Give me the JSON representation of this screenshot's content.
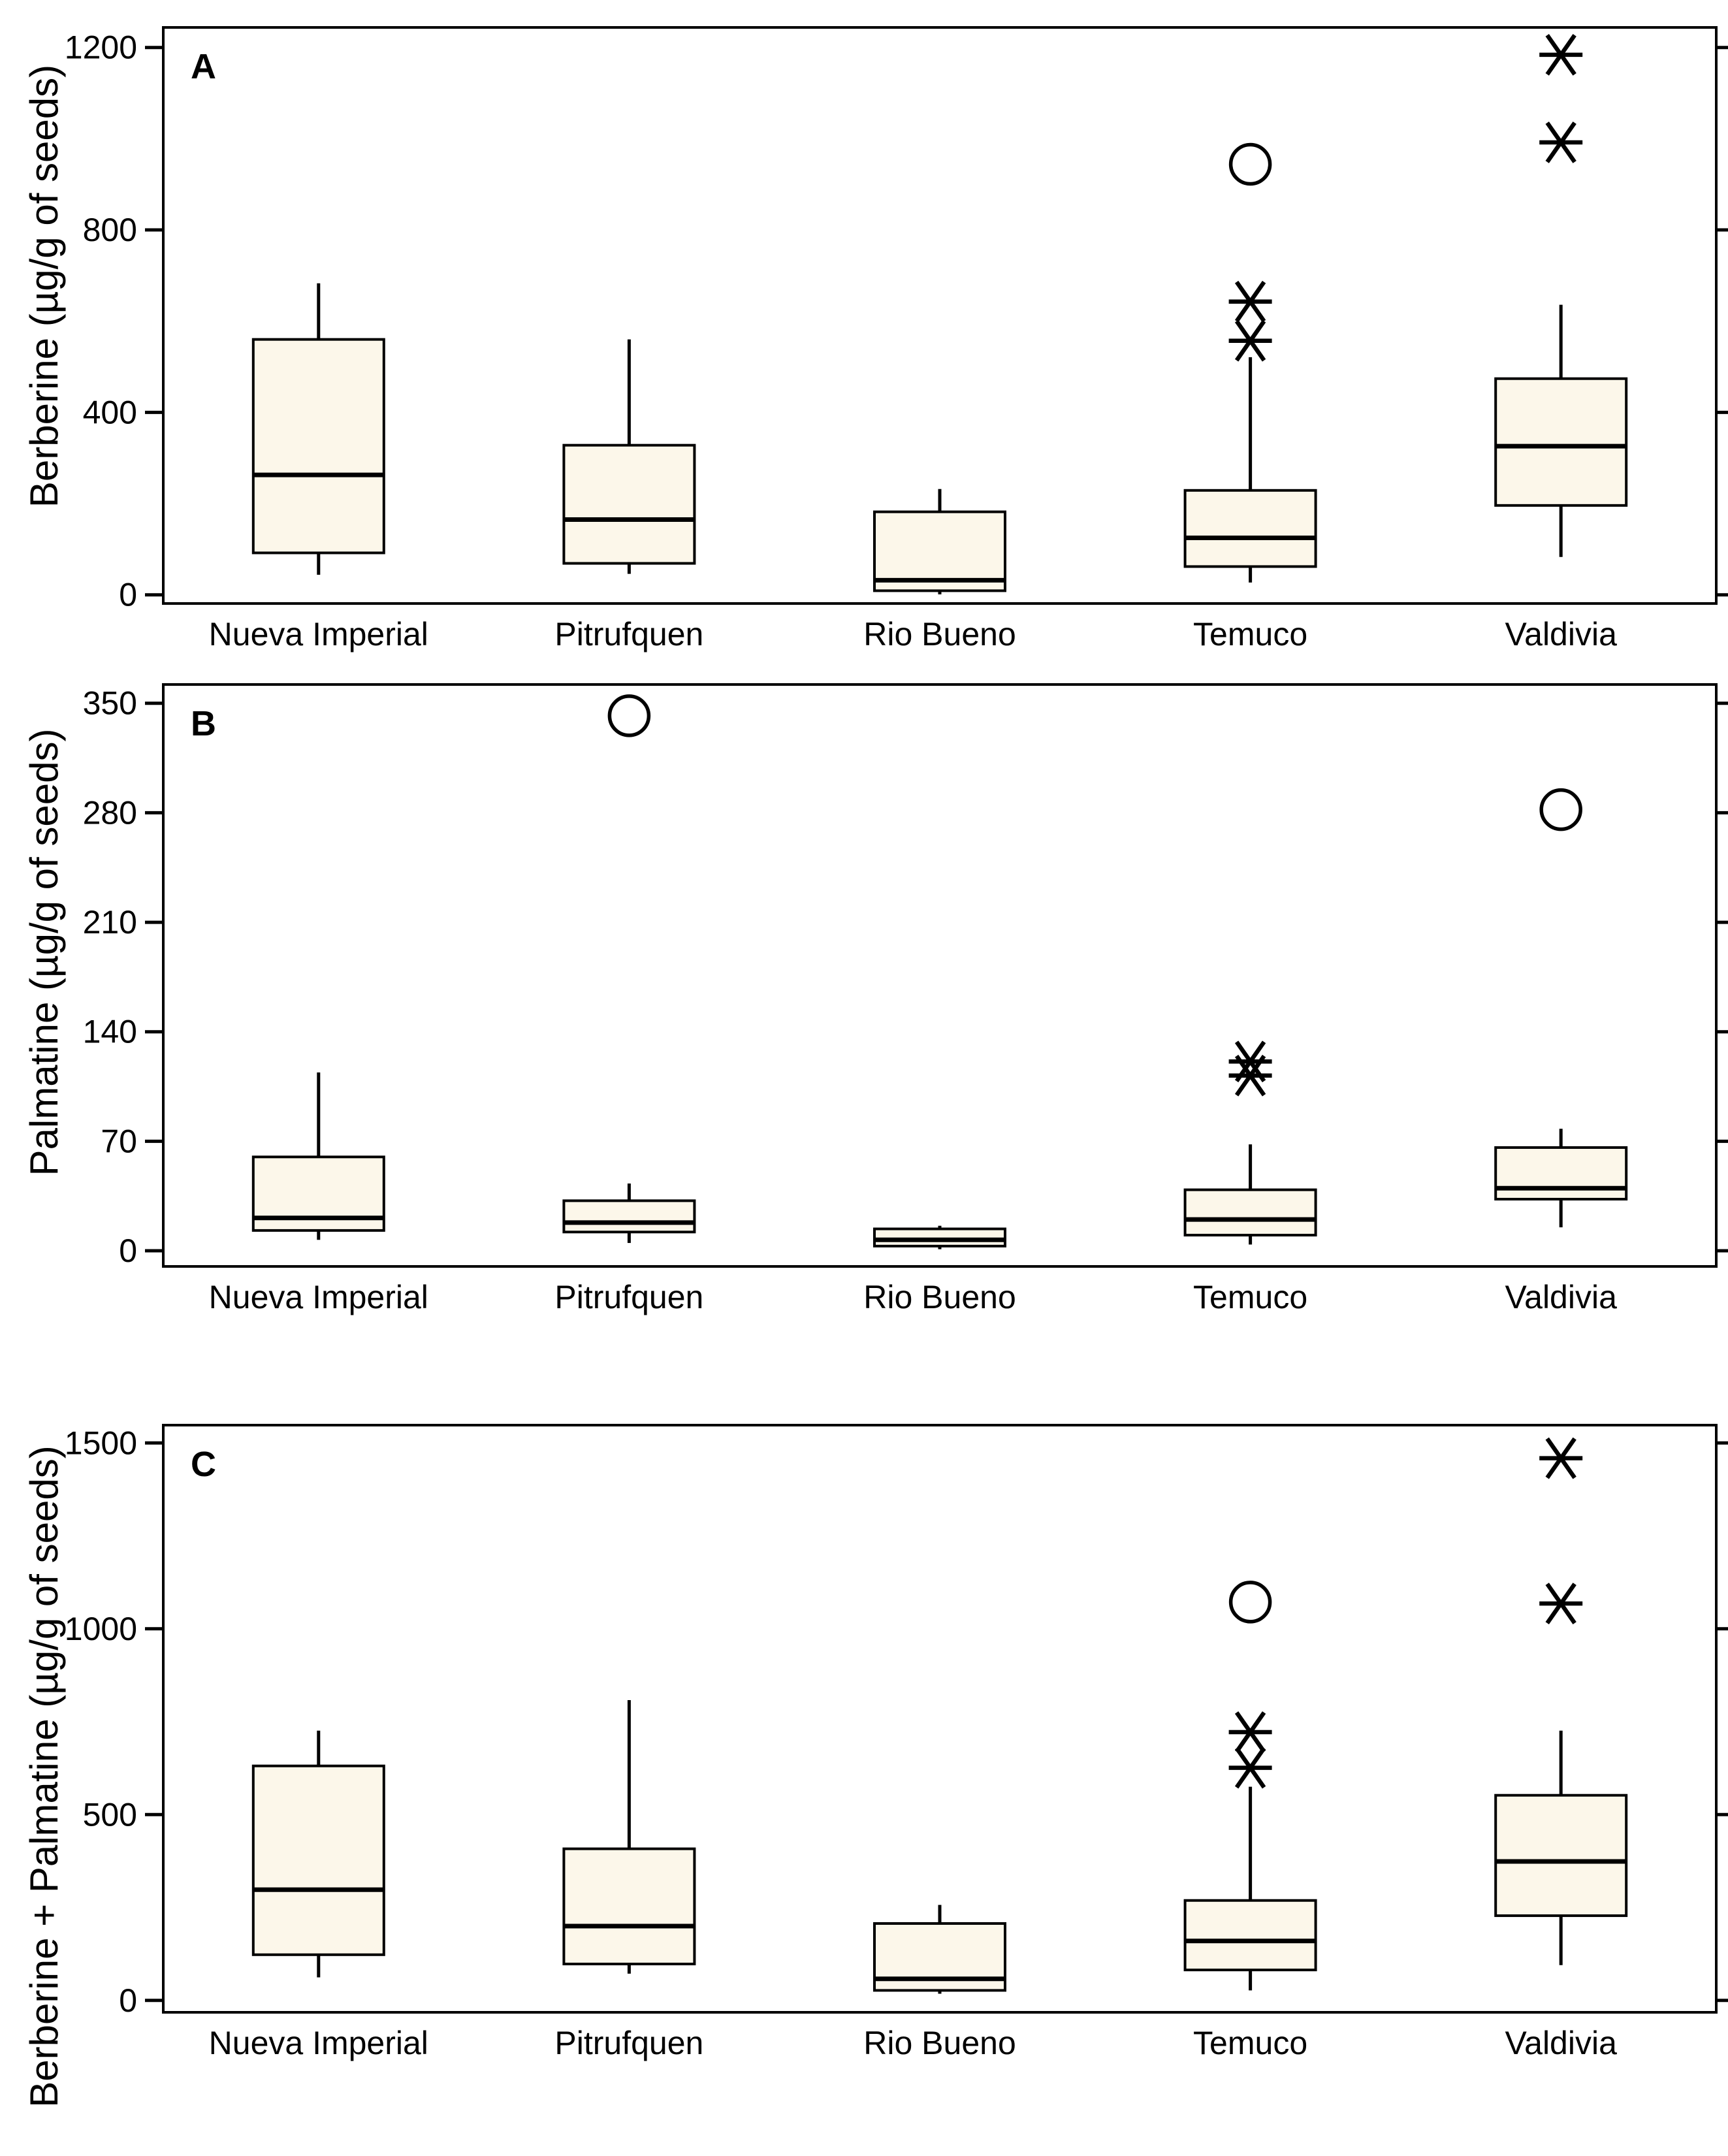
{
  "figure": {
    "background_color": "#ffffff",
    "box_fill_color": "#fcf7ea",
    "line_color": "#000000",
    "unit_suffix": "(µg/g of seeds)"
  },
  "chart_data": [
    {
      "type": "box",
      "panel_label": "A",
      "y_title": "Berberine (µg/g of seeds)",
      "ylim": [
        -19,
        1244
      ],
      "yticks": [
        0,
        400,
        800,
        1200
      ],
      "grid": false,
      "categories": [
        "Nueva Imperial",
        "Pitrufquen",
        "Rio Bueno",
        "Temuco",
        "Valdivia"
      ],
      "boxes": [
        {
          "category": "Nueva Imperial",
          "whisker_low": 44,
          "q1": 92,
          "median": 263,
          "q3": 560,
          "whisker_high": 683,
          "outliers_circle": [],
          "outliers_extreme": []
        },
        {
          "category": "Pitrufquen",
          "whisker_low": 46,
          "q1": 69,
          "median": 165,
          "q3": 328,
          "whisker_high": 560,
          "outliers_circle": [],
          "outliers_extreme": []
        },
        {
          "category": "Rio Bueno",
          "whisker_low": 1,
          "q1": 9,
          "median": 32,
          "q3": 182,
          "whisker_high": 232,
          "outliers_circle": [],
          "outliers_extreme": []
        },
        {
          "category": "Temuco",
          "whisker_low": 27,
          "q1": 62,
          "median": 125,
          "q3": 229,
          "whisker_high": 521,
          "outliers_circle": [
            944
          ],
          "outliers_extreme": [
            643,
            557
          ]
        },
        {
          "category": "Valdivia",
          "whisker_low": 83,
          "q1": 196,
          "median": 326,
          "q3": 474,
          "whisker_high": 636,
          "outliers_circle": [],
          "outliers_extreme": [
            1184,
            992
          ]
        }
      ]
    },
    {
      "type": "box",
      "panel_label": "B",
      "y_title": "Palmatine (µg/g of seeds)",
      "ylim": [
        -10,
        362
      ],
      "yticks": [
        0,
        70,
        140,
        210,
        280,
        350
      ],
      "grid": false,
      "categories": [
        "Nueva Imperial",
        "Pitrufquen",
        "Rio Bueno",
        "Temuco",
        "Valdivia"
      ],
      "boxes": [
        {
          "category": "Nueva Imperial",
          "whisker_low": 7,
          "q1": 13,
          "median": 21,
          "q3": 60,
          "whisker_high": 114,
          "outliers_circle": [],
          "outliers_extreme": []
        },
        {
          "category": "Pitrufquen",
          "whisker_low": 5,
          "q1": 12,
          "median": 18,
          "q3": 32,
          "whisker_high": 43,
          "outliers_circle": [
            342
          ],
          "outliers_extreme": []
        },
        {
          "category": "Rio Bueno",
          "whisker_low": 1,
          "q1": 3,
          "median": 7,
          "q3": 14,
          "whisker_high": 16,
          "outliers_circle": [],
          "outliers_extreme": []
        },
        {
          "category": "Temuco",
          "whisker_low": 4,
          "q1": 10,
          "median": 20,
          "q3": 39,
          "whisker_high": 68,
          "outliers_circle": [],
          "outliers_extreme": [
            121,
            112
          ]
        },
        {
          "category": "Valdivia",
          "whisker_low": 15,
          "q1": 33,
          "median": 40,
          "q3": 66,
          "whisker_high": 78,
          "outliers_circle": [
            282
          ],
          "outliers_extreme": []
        }
      ]
    },
    {
      "type": "box",
      "panel_label": "C",
      "y_title": "Berberine + Palmatine (µg/g of seeds)",
      "ylim": [
        -32,
        1548
      ],
      "yticks": [
        0,
        500,
        1000,
        1500
      ],
      "grid": false,
      "categories": [
        "Nueva Imperial",
        "Pitrufquen",
        "Rio Bueno",
        "Temuco",
        "Valdivia"
      ],
      "boxes": [
        {
          "category": "Nueva Imperial",
          "whisker_low": 62,
          "q1": 123,
          "median": 298,
          "q3": 631,
          "whisker_high": 726,
          "outliers_circle": [],
          "outliers_extreme": []
        },
        {
          "category": "Pitrufquen",
          "whisker_low": 72,
          "q1": 98,
          "median": 200,
          "q3": 408,
          "whisker_high": 808,
          "outliers_circle": [],
          "outliers_extreme": []
        },
        {
          "category": "Rio Bueno",
          "whisker_low": 18,
          "q1": 27,
          "median": 58,
          "q3": 207,
          "whisker_high": 257,
          "outliers_circle": [],
          "outliers_extreme": []
        },
        {
          "category": "Temuco",
          "whisker_low": 27,
          "q1": 82,
          "median": 160,
          "q3": 269,
          "whisker_high": 575,
          "outliers_circle": [
            1072
          ],
          "outliers_extreme": [
            722,
            626
          ]
        },
        {
          "category": "Valdivia",
          "whisker_low": 95,
          "q1": 228,
          "median": 374,
          "q3": 552,
          "whisker_high": 726,
          "outliers_circle": [],
          "outliers_extreme": [
            1459,
            1068
          ]
        }
      ]
    }
  ]
}
